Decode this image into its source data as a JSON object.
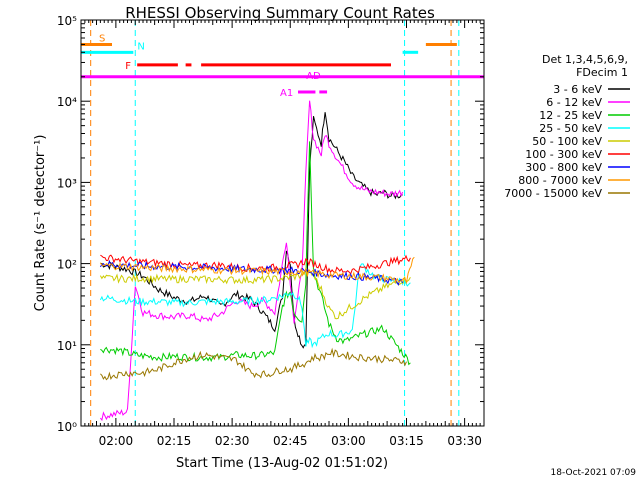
{
  "chart_data": {
    "type": "line",
    "title": "RHESSI Observing Summary Count Rates",
    "xlabel": "Start Time (13-Aug-02 01:51:02)",
    "ylabel": "Count Rate (s⁻¹ detector⁻¹)",
    "x_unit": "minutes since 01:51:02",
    "xlim": [
      0,
      104
    ],
    "ylim": [
      1,
      100000
    ],
    "y_scale": "log",
    "x_ticks": [
      {
        "label": "02:00",
        "value": 9
      },
      {
        "label": "02:15",
        "value": 24
      },
      {
        "label": "02:30",
        "value": 39
      },
      {
        "label": "02:45",
        "value": 54
      },
      {
        "label": "03:00",
        "value": 69
      },
      {
        "label": "03:15",
        "value": 84
      },
      {
        "label": "03:30",
        "value": 99
      }
    ],
    "y_ticks": [
      {
        "label": "10⁰",
        "value": 1
      },
      {
        "label": "10¹",
        "value": 10
      },
      {
        "label": "10²",
        "value": 100
      },
      {
        "label": "10³",
        "value": 1000
      },
      {
        "label": "10⁴",
        "value": 10000
      },
      {
        "label": "10⁵",
        "value": 100000
      }
    ],
    "grid": false,
    "legend_placement": "right",
    "legend_header": [
      "Det 1,3,4,5,6,9,",
      "FDecim 1"
    ],
    "series": [
      {
        "name": "3 - 6 keV",
        "color": "#000000",
        "x": [
          5,
          12,
          16,
          20,
          24,
          28,
          32,
          36,
          40,
          44,
          47,
          50,
          52,
          53,
          54,
          55,
          56,
          57,
          58,
          59,
          60,
          62,
          63,
          64,
          66,
          68,
          70,
          72,
          74,
          76,
          78,
          80,
          83
        ],
        "y": [
          100,
          85,
          70,
          48,
          38,
          34,
          40,
          30,
          42,
          36,
          25,
          16,
          40,
          150,
          100,
          20,
          14,
          10,
          10,
          1500,
          6000,
          3000,
          8000,
          3500,
          2500,
          1800,
          1200,
          950,
          800,
          700,
          750,
          680,
          700
        ]
      },
      {
        "name": "6 - 12 keV",
        "color": "#ff00ff",
        "x": [
          5,
          12,
          14,
          16,
          20,
          24,
          28,
          32,
          36,
          40,
          44,
          47,
          50,
          52,
          53,
          54,
          55,
          56,
          57,
          58,
          59,
          60,
          62,
          63,
          64,
          66,
          68,
          70,
          72,
          74,
          76,
          78,
          80,
          83
        ],
        "y": [
          1.3,
          1.5,
          55,
          25,
          23,
          22,
          23,
          20,
          24,
          35,
          30,
          35,
          25,
          100,
          200,
          60,
          20,
          40,
          80,
          1200,
          10000,
          3500,
          2200,
          4000,
          3000,
          2000,
          1400,
          1000,
          850,
          780,
          760,
          740,
          720,
          760
        ]
      },
      {
        "name": "12 - 25 keV",
        "color": "#00cc00",
        "x": [
          5,
          10,
          14,
          20,
          24,
          30,
          36,
          40,
          44,
          47,
          50,
          52,
          53,
          54,
          55,
          56,
          57,
          58,
          59,
          60,
          62,
          64,
          66,
          68,
          70,
          72,
          74,
          76,
          78,
          80,
          83,
          85
        ],
        "y": [
          9,
          8.5,
          7.5,
          7,
          7.2,
          7,
          7,
          7.5,
          7.3,
          7.5,
          8,
          30,
          40,
          45,
          25,
          22,
          20,
          60,
          3500,
          80,
          40,
          18,
          12,
          11,
          12,
          13,
          14,
          15,
          16,
          12,
          8,
          6
        ]
      },
      {
        "name": "25 - 50 keV",
        "color": "#00ffff",
        "x": [
          5,
          10,
          12,
          16,
          20,
          24,
          28,
          32,
          36,
          40,
          44,
          48,
          50,
          52,
          53,
          54,
          55,
          56,
          57,
          58,
          59,
          60,
          62,
          64,
          66,
          68,
          70,
          72,
          76,
          80,
          83,
          85
        ],
        "y": [
          38,
          36,
          35,
          34,
          34,
          33,
          33,
          34,
          34,
          34,
          35,
          36,
          38,
          40,
          42,
          44,
          42,
          38,
          30,
          10,
          11,
          10,
          12,
          14,
          13,
          14,
          15,
          100,
          68,
          62,
          60,
          58
        ]
      },
      {
        "name": "50 - 100 keV",
        "color": "#cccc00",
        "x": [
          5,
          12,
          16,
          20,
          24,
          28,
          32,
          36,
          40,
          44,
          48,
          52,
          54,
          56,
          58,
          60,
          62,
          64,
          66,
          68,
          70,
          74,
          78,
          82,
          85
        ],
        "y": [
          66,
          65,
          66,
          65,
          64,
          65,
          64,
          64,
          63,
          63,
          64,
          66,
          68,
          70,
          80,
          72,
          48,
          28,
          22,
          26,
          30,
          40,
          50,
          60,
          68
        ]
      },
      {
        "name": "100 - 300 keV",
        "color": "#ff0000",
        "x": [
          5,
          12,
          16,
          20,
          24,
          28,
          32,
          36,
          40,
          44,
          48,
          52,
          56,
          58,
          60,
          62,
          64,
          66,
          70,
          74,
          78,
          82,
          85
        ],
        "y": [
          120,
          110,
          105,
          102,
          98,
          94,
          95,
          96,
          90,
          88,
          88,
          92,
          98,
          108,
          100,
          92,
          85,
          82,
          82,
          90,
          100,
          110,
          118
        ]
      },
      {
        "name": "300 - 800 keV",
        "color": "#0000ff",
        "x": [
          5,
          12,
          20,
          30,
          40,
          50,
          56,
          60,
          64,
          70,
          76,
          80,
          83
        ],
        "y": [
          100,
          95,
          92,
          90,
          86,
          84,
          82,
          78,
          72,
          70,
          66,
          62,
          58
        ]
      },
      {
        "name": "800 - 7000 keV",
        "color": "#ff9900",
        "x": [
          5,
          12,
          20,
          30,
          40,
          50,
          56,
          60,
          64,
          70,
          76,
          80,
          84,
          86
        ],
        "y": [
          95,
          92,
          88,
          85,
          82,
          80,
          79,
          76,
          73,
          70,
          68,
          65,
          60,
          120
        ]
      },
      {
        "name": "7000 - 15000 keV",
        "color": "#997700",
        "x": [
          5,
          12,
          16,
          20,
          24,
          28,
          32,
          36,
          40,
          44,
          48,
          52,
          54,
          56,
          58,
          60,
          62,
          64,
          68,
          72,
          76,
          80,
          84
        ],
        "y": [
          4,
          4.5,
          4.5,
          5,
          6,
          7,
          7.5,
          7,
          6.5,
          4.5,
          4.3,
          5,
          5,
          5.5,
          6,
          7,
          7,
          8,
          7.5,
          7,
          6.8,
          6.5,
          6.2
        ]
      }
    ],
    "attitude_flags": [
      {
        "label": "S",
        "color": "#ff7f00",
        "level": 50000,
        "segments": [
          [
            0,
            8
          ],
          [
            89,
            97
          ]
        ]
      },
      {
        "label": "N",
        "color": "#00ffff",
        "level": 40000,
        "segments": [
          [
            0,
            13.5
          ],
          [
            83,
            87
          ]
        ]
      },
      {
        "label": "F",
        "color": "#ff0000",
        "level": 28000,
        "segments": [
          [
            14.5,
            25
          ],
          [
            27,
            28.5
          ],
          [
            31,
            80
          ]
        ]
      },
      {
        "label": "AD",
        "color": "#ff00ff",
        "level": 20000,
        "segments": [
          [
            0,
            104
          ]
        ]
      },
      {
        "label": "A1",
        "color": "#ff00ff",
        "level": 13000,
        "segments": [
          [
            56,
            60.5
          ],
          [
            61.5,
            63.5
          ]
        ]
      }
    ],
    "vertical_markers": [
      {
        "color": "#ff7f00",
        "x": [
          2.5,
          95.5
        ]
      },
      {
        "color": "#00ffff",
        "x": [
          14,
          83.5,
          97.5
        ]
      }
    ],
    "footer_date": "18-Oct-2021 07:09"
  }
}
